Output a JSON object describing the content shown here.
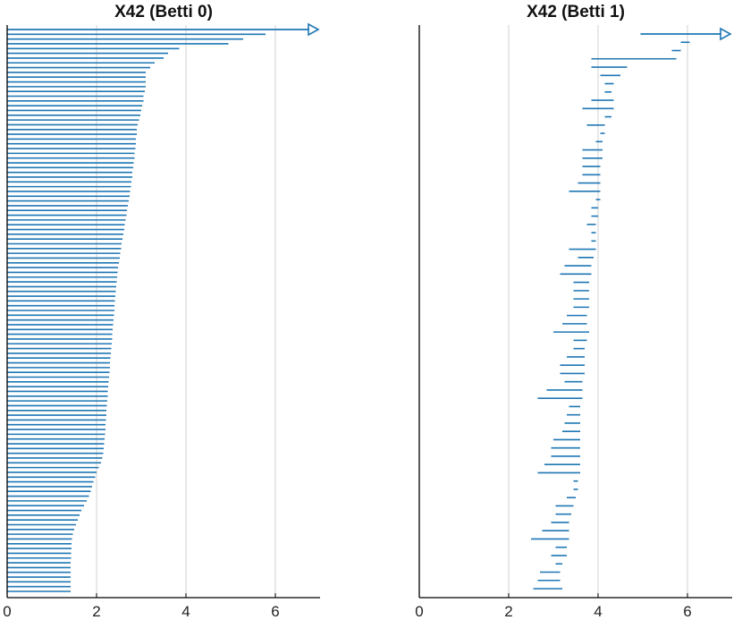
{
  "colors": {
    "bar": "#1f77b4",
    "grid": "#d9d9d9",
    "axis": "#000000",
    "background": "#ffffff"
  },
  "chart_data": [
    {
      "type": "barcode",
      "title": "X42 (Betti 0)",
      "xlim": [
        0,
        7
      ],
      "xticks": [
        0,
        2,
        4,
        6
      ],
      "grid": "vertical",
      "infinite_arrow": {
        "start": 0,
        "label_arrow": true
      },
      "bars": [
        [
          0,
          5.78
        ],
        [
          0,
          5.28
        ],
        [
          0,
          4.95
        ],
        [
          0,
          3.85
        ],
        [
          0,
          3.6
        ],
        [
          0,
          3.5
        ],
        [
          0,
          3.3
        ],
        [
          0,
          3.2
        ],
        [
          0,
          3.1
        ],
        [
          0,
          3.1
        ],
        [
          0,
          3.1
        ],
        [
          0,
          3.1
        ],
        [
          0,
          3.08
        ],
        [
          0,
          3.05
        ],
        [
          0,
          3.05
        ],
        [
          0,
          3.02
        ],
        [
          0,
          3.0
        ],
        [
          0,
          2.98
        ],
        [
          0,
          2.95
        ],
        [
          0,
          2.92
        ],
        [
          0,
          2.9
        ],
        [
          0,
          2.9
        ],
        [
          0,
          2.88
        ],
        [
          0,
          2.88
        ],
        [
          0,
          2.87
        ],
        [
          0,
          2.85
        ],
        [
          0,
          2.85
        ],
        [
          0,
          2.83
        ],
        [
          0,
          2.82
        ],
        [
          0,
          2.8
        ],
        [
          0,
          2.8
        ],
        [
          0,
          2.78
        ],
        [
          0,
          2.77
        ],
        [
          0,
          2.75
        ],
        [
          0,
          2.74
        ],
        [
          0,
          2.72
        ],
        [
          0,
          2.7
        ],
        [
          0,
          2.68
        ],
        [
          0,
          2.67
        ],
        [
          0,
          2.65
        ],
        [
          0,
          2.63
        ],
        [
          0,
          2.62
        ],
        [
          0,
          2.6
        ],
        [
          0,
          2.58
        ],
        [
          0,
          2.56
        ],
        [
          0,
          2.55
        ],
        [
          0,
          2.53
        ],
        [
          0,
          2.52
        ],
        [
          0,
          2.5
        ],
        [
          0,
          2.48
        ],
        [
          0,
          2.47
        ],
        [
          0,
          2.46
        ],
        [
          0,
          2.45
        ],
        [
          0,
          2.44
        ],
        [
          0,
          2.43
        ],
        [
          0,
          2.42
        ],
        [
          0,
          2.41
        ],
        [
          0,
          2.4
        ],
        [
          0,
          2.4
        ],
        [
          0,
          2.39
        ],
        [
          0,
          2.38
        ],
        [
          0,
          2.37
        ],
        [
          0,
          2.36
        ],
        [
          0,
          2.35
        ],
        [
          0,
          2.35
        ],
        [
          0,
          2.34
        ],
        [
          0,
          2.33
        ],
        [
          0,
          2.32
        ],
        [
          0,
          2.31
        ],
        [
          0,
          2.3
        ],
        [
          0,
          2.3
        ],
        [
          0,
          2.29
        ],
        [
          0,
          2.28
        ],
        [
          0,
          2.27
        ],
        [
          0,
          2.26
        ],
        [
          0,
          2.25
        ],
        [
          0,
          2.25
        ],
        [
          0,
          2.24
        ],
        [
          0,
          2.23
        ],
        [
          0,
          2.22
        ],
        [
          0,
          2.22
        ],
        [
          0,
          2.21
        ],
        [
          0,
          2.2
        ],
        [
          0,
          2.2
        ],
        [
          0,
          2.19
        ],
        [
          0,
          2.18
        ],
        [
          0,
          2.17
        ],
        [
          0,
          2.16
        ],
        [
          0,
          2.15
        ],
        [
          0,
          2.13
        ],
        [
          0,
          2.1
        ],
        [
          0,
          2.05
        ],
        [
          0,
          2.0
        ],
        [
          0,
          1.97
        ],
        [
          0,
          1.93
        ],
        [
          0,
          1.9
        ],
        [
          0,
          1.87
        ],
        [
          0,
          1.83
        ],
        [
          0,
          1.78
        ],
        [
          0,
          1.72
        ],
        [
          0,
          1.66
        ],
        [
          0,
          1.62
        ],
        [
          0,
          1.58
        ],
        [
          0,
          1.54
        ],
        [
          0,
          1.5
        ],
        [
          0,
          1.47
        ],
        [
          0,
          1.45
        ],
        [
          0,
          1.44
        ],
        [
          0,
          1.44
        ],
        [
          0,
          1.43
        ],
        [
          0,
          1.43
        ],
        [
          0,
          1.42
        ],
        [
          0,
          1.42
        ],
        [
          0,
          1.42
        ],
        [
          0,
          1.42
        ],
        [
          0,
          1.42
        ],
        [
          0,
          1.42
        ],
        [
          0,
          1.42
        ]
      ]
    },
    {
      "type": "barcode",
      "title": "X42 (Betti 1)",
      "xlim": [
        0,
        7
      ],
      "xticks": [
        0,
        2,
        4,
        6
      ],
      "grid": "vertical",
      "infinite_arrow": {
        "start": 4.95,
        "label_arrow": true
      },
      "bars": [
        [
          5.85,
          6.05
        ],
        [
          5.65,
          5.85
        ],
        [
          3.85,
          5.75
        ],
        [
          3.85,
          4.65
        ],
        [
          4.05,
          4.5
        ],
        [
          4.15,
          4.35
        ],
        [
          4.15,
          4.3
        ],
        [
          3.85,
          4.35
        ],
        [
          3.65,
          4.35
        ],
        [
          4.15,
          4.3
        ],
        [
          3.75,
          4.15
        ],
        [
          4.05,
          4.15
        ],
        [
          3.95,
          4.1
        ],
        [
          3.65,
          4.1
        ],
        [
          3.65,
          4.1
        ],
        [
          3.65,
          4.05
        ],
        [
          3.65,
          4.05
        ],
        [
          3.55,
          4.05
        ],
        [
          3.35,
          4.05
        ],
        [
          3.95,
          4.05
        ],
        [
          3.85,
          4.0
        ],
        [
          3.85,
          4.0
        ],
        [
          3.75,
          3.95
        ],
        [
          3.85,
          3.95
        ],
        [
          3.85,
          3.95
        ],
        [
          3.35,
          3.95
        ],
        [
          3.55,
          3.9
        ],
        [
          3.25,
          3.85
        ],
        [
          3.15,
          3.85
        ],
        [
          3.45,
          3.8
        ],
        [
          3.45,
          3.8
        ],
        [
          3.45,
          3.8
        ],
        [
          3.45,
          3.8
        ],
        [
          3.3,
          3.75
        ],
        [
          3.2,
          3.75
        ],
        [
          3.0,
          3.8
        ],
        [
          3.45,
          3.75
        ],
        [
          3.45,
          3.7
        ],
        [
          3.3,
          3.7
        ],
        [
          3.15,
          3.7
        ],
        [
          3.15,
          3.7
        ],
        [
          3.25,
          3.65
        ],
        [
          2.85,
          3.65
        ],
        [
          2.65,
          3.65
        ],
        [
          3.35,
          3.6
        ],
        [
          3.3,
          3.6
        ],
        [
          3.25,
          3.6
        ],
        [
          3.2,
          3.6
        ],
        [
          3.0,
          3.6
        ],
        [
          2.95,
          3.6
        ],
        [
          2.95,
          3.6
        ],
        [
          2.8,
          3.6
        ],
        [
          2.65,
          3.6
        ],
        [
          3.45,
          3.55
        ],
        [
          3.45,
          3.55
        ],
        [
          3.3,
          3.5
        ],
        [
          3.05,
          3.45
        ],
        [
          3.05,
          3.4
        ],
        [
          2.95,
          3.35
        ],
        [
          2.75,
          3.35
        ],
        [
          2.5,
          3.35
        ],
        [
          3.05,
          3.3
        ],
        [
          2.95,
          3.3
        ],
        [
          3.05,
          3.2
        ],
        [
          2.7,
          3.15
        ],
        [
          2.65,
          3.15
        ],
        [
          2.55,
          3.2
        ]
      ]
    }
  ]
}
